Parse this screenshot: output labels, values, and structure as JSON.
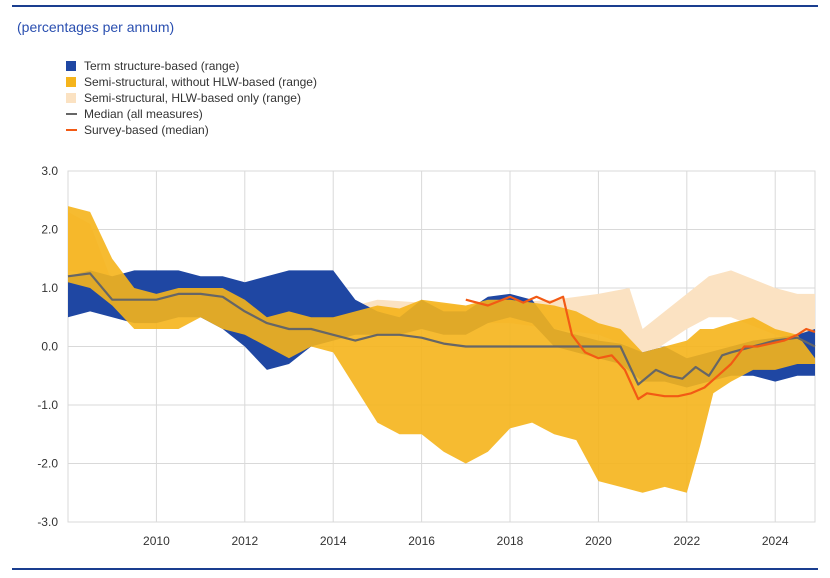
{
  "subtitle": "(percentages per annum)",
  "legend": [
    {
      "label": "Term structure-based (range)",
      "color": "#1f47a3",
      "kind": "box"
    },
    {
      "label": "Semi-structural, without HLW-based (range)",
      "color": "#f5b41b",
      "kind": "box"
    },
    {
      "label": "Semi-structural, HLW-based only (range)",
      "color": "#fbe2c2",
      "kind": "box"
    },
    {
      "label": "Median (all measures)",
      "color": "#666666",
      "kind": "line"
    },
    {
      "label": "Survey-based (median)",
      "color": "#f25a14",
      "kind": "line"
    }
  ],
  "chart_data": {
    "type": "area",
    "xlim": [
      2008.0,
      2024.9
    ],
    "ylim": [
      -3.0,
      3.0
    ],
    "grid": true,
    "x_ticks": [
      2010,
      2012,
      2014,
      2016,
      2018,
      2020,
      2022,
      2024
    ],
    "x_tick_labels": [
      "2010",
      "2012",
      "2014",
      "2016",
      "2018",
      "2020",
      "2022",
      "2024"
    ],
    "y_ticks": [
      -3,
      -2,
      -1,
      0,
      1,
      2,
      3
    ],
    "y_tick_labels": [
      "-3.0",
      "-2.0",
      "-1.0",
      "0.0",
      "1.0",
      "2.0",
      "3.0"
    ],
    "series": [
      {
        "name": "Semi-structural, HLW-based only (range)",
        "kind": "band",
        "x": [
          2008.0,
          2008.5,
          2009.0,
          2010.0,
          2011.0,
          2012.0,
          2013.0,
          2014.0,
          2015.0,
          2016.0,
          2017.0,
          2018.0,
          2019.0,
          2020.0,
          2020.7,
          2021.0,
          2022.0,
          2022.5,
          2023.0,
          2024.0,
          2024.5,
          2024.9
        ],
        "high": [
          2.3,
          2.1,
          1.1,
          1.0,
          1.0,
          0.7,
          0.5,
          0.6,
          0.8,
          0.75,
          0.7,
          0.75,
          0.8,
          0.9,
          1.0,
          0.3,
          0.9,
          1.2,
          1.3,
          1.0,
          0.9,
          0.9
        ],
        "low": [
          1.3,
          1.2,
          0.8,
          0.8,
          0.8,
          0.5,
          0.3,
          0.4,
          0.4,
          0.4,
          0.4,
          0.4,
          0.3,
          0.2,
          0.0,
          -0.2,
          0.3,
          0.5,
          0.5,
          0.2,
          0.1,
          0.0
        ]
      },
      {
        "name": "Term structure-based (range)",
        "kind": "band",
        "x": [
          2008.0,
          2008.5,
          2009.0,
          2009.5,
          2010.0,
          2010.5,
          2011.0,
          2011.5,
          2012.0,
          2012.5,
          2013.0,
          2013.5,
          2014.0,
          2014.5,
          2015.0,
          2015.5,
          2016.0,
          2016.5,
          2017.0,
          2017.5,
          2018.0,
          2018.5,
          2019.0,
          2019.5,
          2020.0,
          2020.5,
          2021.0,
          2021.5,
          2022.0,
          2022.5,
          2023.0,
          2023.5,
          2024.0,
          2024.5,
          2024.9
        ],
        "high": [
          1.2,
          1.3,
          1.2,
          1.3,
          1.3,
          1.3,
          1.2,
          1.2,
          1.1,
          1.2,
          1.3,
          1.3,
          1.3,
          0.8,
          0.6,
          0.5,
          0.8,
          0.6,
          0.6,
          0.85,
          0.9,
          0.8,
          0.3,
          0.2,
          0.1,
          0.05,
          -0.1,
          0.0,
          -0.2,
          -0.1,
          0.0,
          0.1,
          0.15,
          0.2,
          0.3
        ],
        "low": [
          0.5,
          0.6,
          0.5,
          0.4,
          0.4,
          0.5,
          0.5,
          0.3,
          0.0,
          -0.4,
          -0.3,
          0.0,
          0.1,
          0.2,
          0.2,
          0.2,
          0.3,
          0.2,
          0.2,
          0.4,
          0.5,
          0.4,
          0.0,
          -0.1,
          -0.2,
          -0.3,
          -0.6,
          -0.6,
          -0.7,
          -0.6,
          -0.5,
          -0.5,
          -0.6,
          -0.5,
          -0.5
        ]
      },
      {
        "name": "Semi-structural, without HLW-based (range)",
        "kind": "band",
        "x": [
          2008.0,
          2008.5,
          2009.0,
          2009.5,
          2010.0,
          2010.5,
          2011.0,
          2011.5,
          2012.0,
          2012.5,
          2013.0,
          2013.5,
          2014.0,
          2014.5,
          2015.0,
          2015.5,
          2016.0,
          2016.5,
          2017.0,
          2017.5,
          2018.0,
          2018.5,
          2019.0,
          2019.5,
          2020.0,
          2020.5,
          2021.0,
          2021.5,
          2022.0,
          2022.3,
          2022.6,
          2023.0,
          2023.5,
          2024.0,
          2024.5,
          2024.9
        ],
        "high": [
          2.4,
          2.3,
          1.5,
          1.0,
          0.9,
          1.0,
          1.0,
          1.0,
          0.8,
          0.5,
          0.6,
          0.5,
          0.5,
          0.6,
          0.7,
          0.65,
          0.8,
          0.75,
          0.7,
          0.8,
          0.8,
          0.75,
          0.7,
          0.6,
          0.4,
          0.3,
          -0.1,
          0.0,
          0.1,
          0.3,
          0.3,
          0.4,
          0.5,
          0.3,
          0.2,
          -0.2
        ],
        "low": [
          1.1,
          1.0,
          0.7,
          0.3,
          0.3,
          0.3,
          0.5,
          0.3,
          0.2,
          0.0,
          -0.2,
          0.0,
          -0.1,
          -0.7,
          -1.3,
          -1.5,
          -1.5,
          -1.8,
          -2.0,
          -1.8,
          -1.4,
          -1.3,
          -1.5,
          -1.6,
          -2.3,
          -2.4,
          -2.5,
          -2.4,
          -2.5,
          -1.7,
          -0.8,
          -0.6,
          -0.4,
          -0.4,
          -0.3,
          -0.3
        ]
      },
      {
        "name": "Median (all measures)",
        "kind": "line",
        "x": [
          2008.0,
          2008.5,
          2009.0,
          2009.5,
          2010.0,
          2010.5,
          2011.0,
          2011.5,
          2012.0,
          2012.5,
          2013.0,
          2013.5,
          2014.0,
          2014.5,
          2015.0,
          2015.5,
          2016.0,
          2016.5,
          2017.0,
          2017.5,
          2018.0,
          2018.5,
          2019.0,
          2019.5,
          2020.0,
          2020.5,
          2020.9,
          2021.3,
          2021.6,
          2021.9,
          2022.2,
          2022.5,
          2022.8,
          2023.0,
          2023.5,
          2024.0,
          2024.5,
          2024.9
        ],
        "y": [
          1.2,
          1.25,
          0.8,
          0.8,
          0.8,
          0.9,
          0.9,
          0.85,
          0.6,
          0.4,
          0.3,
          0.3,
          0.2,
          0.1,
          0.2,
          0.2,
          0.15,
          0.05,
          0.0,
          0.0,
          0.0,
          0.0,
          0.0,
          0.0,
          0.0,
          0.0,
          -0.65,
          -0.4,
          -0.5,
          -0.55,
          -0.35,
          -0.5,
          -0.15,
          -0.1,
          0.0,
          0.1,
          0.15,
          0.0
        ]
      },
      {
        "name": "Survey-based (median)",
        "kind": "line",
        "x": [
          2017.0,
          2017.5,
          2018.0,
          2018.3,
          2018.6,
          2018.9,
          2019.2,
          2019.4,
          2019.7,
          2020.0,
          2020.3,
          2020.6,
          2020.9,
          2021.1,
          2021.5,
          2021.8,
          2022.1,
          2022.4,
          2022.7,
          2023.0,
          2023.3,
          2023.6,
          2023.9,
          2024.2,
          2024.5,
          2024.7,
          2024.9
        ],
        "y": [
          0.8,
          0.7,
          0.85,
          0.75,
          0.85,
          0.75,
          0.85,
          0.2,
          -0.1,
          -0.2,
          -0.15,
          -0.4,
          -0.9,
          -0.8,
          -0.85,
          -0.85,
          -0.8,
          -0.7,
          -0.5,
          -0.3,
          0.0,
          0.0,
          0.05,
          0.1,
          0.2,
          0.3,
          0.25
        ]
      }
    ]
  }
}
